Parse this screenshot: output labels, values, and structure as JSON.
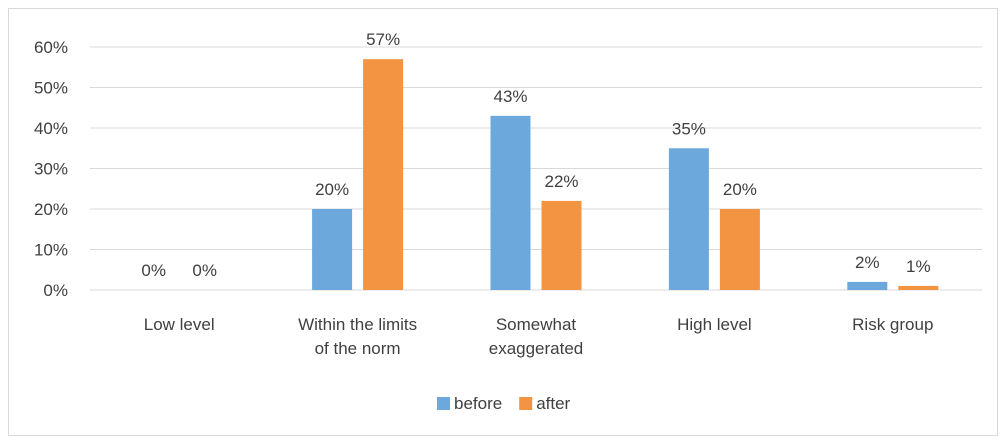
{
  "chart_data": {
    "type": "bar",
    "title": "",
    "xlabel": "",
    "ylabel": "",
    "categories": [
      [
        "Low level"
      ],
      [
        "Within the limits",
        "of the norm"
      ],
      [
        "Somewhat",
        "exaggerated"
      ],
      [
        "High  level"
      ],
      [
        "Risk group"
      ]
    ],
    "series": [
      {
        "name": "before",
        "color": "#6CA8DC",
        "values": [
          0,
          20,
          43,
          35,
          2
        ],
        "labels": [
          "0%",
          "20%",
          "43%",
          "35%",
          "2%"
        ]
      },
      {
        "name": "after",
        "color": "#F39443",
        "values": [
          0,
          57,
          22,
          20,
          1
        ],
        "labels": [
          "0%",
          "57%",
          "22%",
          "20%",
          "1%"
        ]
      }
    ],
    "ylim": [
      0,
      60
    ],
    "yticks": [
      "0%",
      "10%",
      "20%",
      "30%",
      "40%",
      "50%",
      "60%"
    ],
    "grid": true,
    "legend_position": "bottom",
    "gridline_color": "#d9d9d9"
  }
}
